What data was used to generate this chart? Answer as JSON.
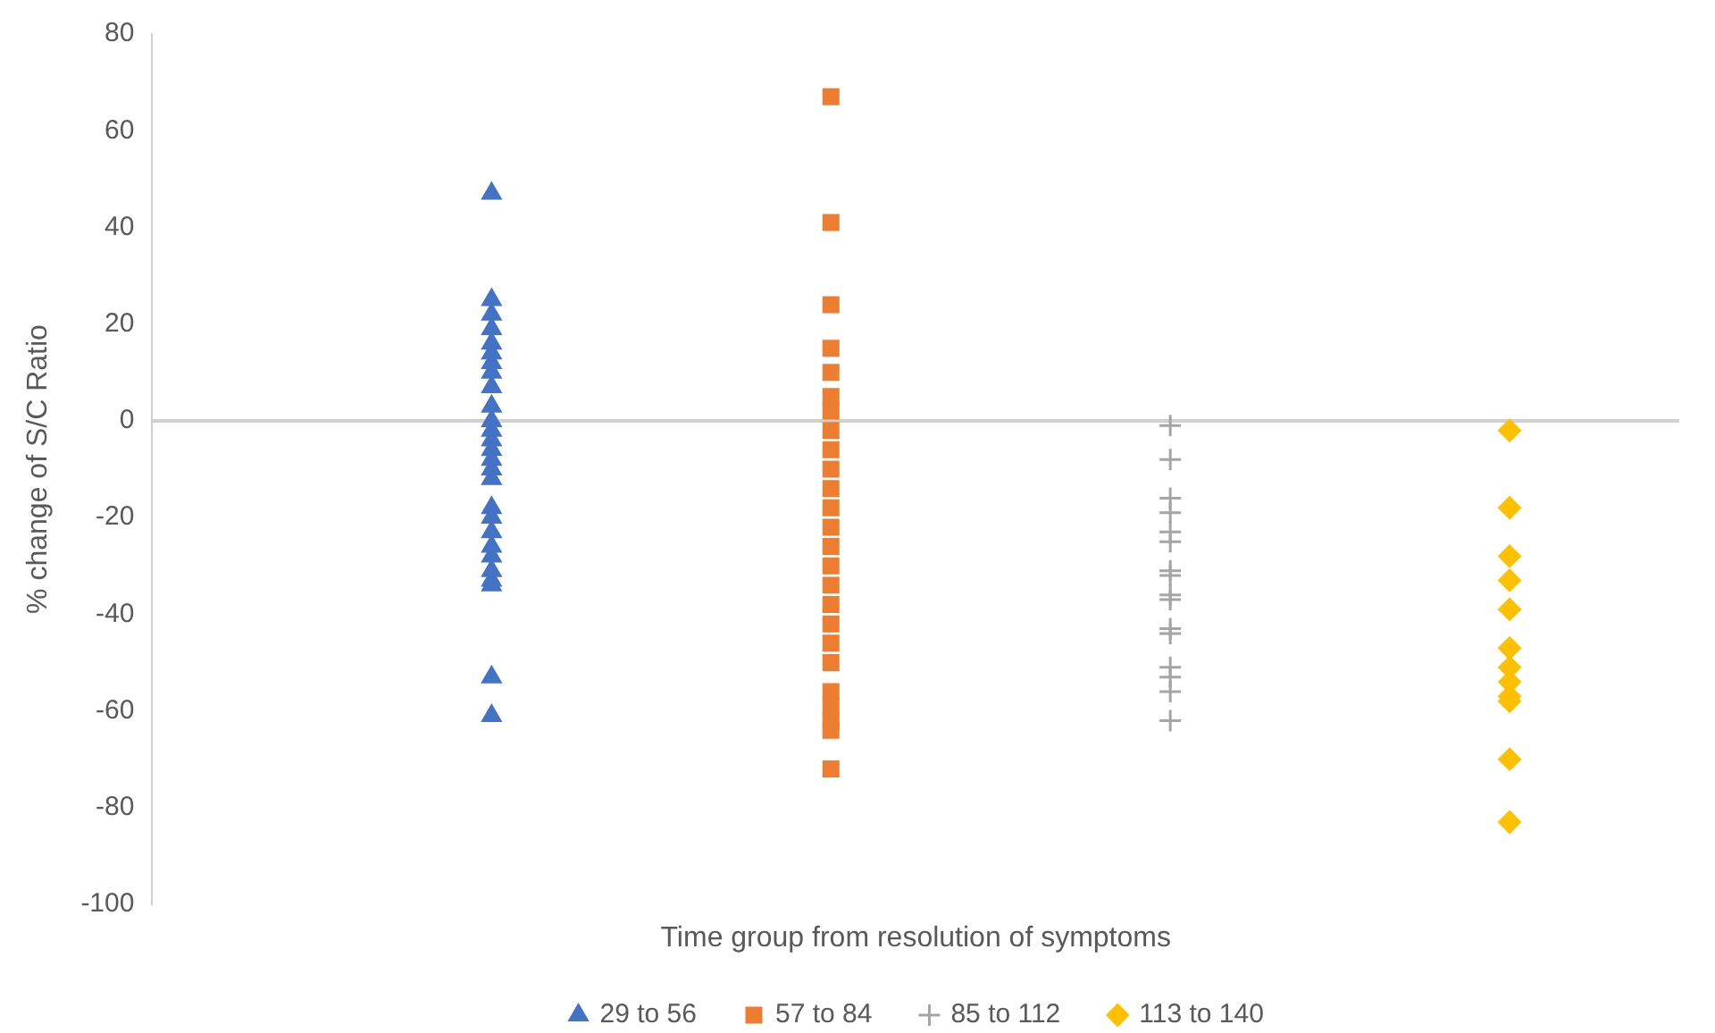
{
  "chart_data": {
    "type": "scatter",
    "xlabel": "Time group from resolution of symptoms",
    "ylabel": "% change of S/C Ratio",
    "categories": [
      null,
      null,
      null,
      null
    ],
    "ylim": [
      -100,
      80
    ],
    "yticks": [
      -100,
      -80,
      -60,
      -40,
      -20,
      0,
      20,
      40,
      60,
      80
    ],
    "tick_labels": "y",
    "grid": false,
    "ref_lines": [
      {
        "axis": "y",
        "value": 0,
        "color": "#d0d0d0"
      }
    ],
    "legend": "bottom",
    "series": [
      {
        "name": "29 to 56",
        "color": "#4472c4",
        "marker": "triangle",
        "values": [
          47,
          null,
          null,
          null
        ]
      },
      {
        "color": "#4472c4",
        "marker": "triangle",
        "values": [
          25,
          null,
          null,
          null
        ]
      },
      {
        "color": "#4472c4",
        "marker": "triangle",
        "values": [
          22,
          null,
          null,
          null
        ]
      },
      {
        "color": "#4472c4",
        "marker": "triangle",
        "values": [
          19,
          null,
          null,
          null
        ]
      },
      {
        "color": "#4472c4",
        "marker": "triangle",
        "values": [
          16,
          null,
          null,
          null
        ]
      },
      {
        "color": "#4472c4",
        "marker": "triangle",
        "values": [
          14,
          null,
          null,
          null
        ]
      },
      {
        "color": "#4472c4",
        "marker": "triangle",
        "values": [
          12,
          null,
          null,
          null
        ]
      },
      {
        "color": "#4472c4",
        "marker": "triangle",
        "values": [
          10,
          null,
          null,
          null
        ]
      },
      {
        "color": "#4472c4",
        "marker": "triangle",
        "values": [
          7,
          null,
          null,
          null
        ]
      },
      {
        "color": "#4472c4",
        "marker": "triangle",
        "values": [
          3,
          null,
          null,
          null
        ]
      },
      {
        "color": "#4472c4",
        "marker": "triangle",
        "values": [
          0,
          null,
          null,
          null
        ]
      },
      {
        "color": "#4472c4",
        "marker": "triangle",
        "values": [
          -2,
          null,
          null,
          null
        ]
      },
      {
        "color": "#4472c4",
        "marker": "triangle",
        "values": [
          -4,
          null,
          null,
          null
        ]
      },
      {
        "color": "#4472c4",
        "marker": "triangle",
        "values": [
          -6,
          null,
          null,
          null
        ]
      },
      {
        "color": "#4472c4",
        "marker": "triangle",
        "values": [
          -8,
          null,
          null,
          null
        ]
      },
      {
        "color": "#4472c4",
        "marker": "triangle",
        "values": [
          -10,
          null,
          null,
          null
        ]
      },
      {
        "color": "#4472c4",
        "marker": "triangle",
        "values": [
          -12,
          null,
          null,
          null
        ]
      },
      {
        "color": "#4472c4",
        "marker": "triangle",
        "values": [
          -18,
          null,
          null,
          null
        ]
      },
      {
        "color": "#4472c4",
        "marker": "triangle",
        "values": [
          -20,
          null,
          null,
          null
        ]
      },
      {
        "color": "#4472c4",
        "marker": "triangle",
        "values": [
          -23,
          null,
          null,
          null
        ]
      },
      {
        "color": "#4472c4",
        "marker": "triangle",
        "values": [
          -26,
          null,
          null,
          null
        ]
      },
      {
        "color": "#4472c4",
        "marker": "triangle",
        "values": [
          -28,
          null,
          null,
          null
        ]
      },
      {
        "color": "#4472c4",
        "marker": "triangle",
        "values": [
          -31,
          null,
          null,
          null
        ]
      },
      {
        "color": "#4472c4",
        "marker": "triangle",
        "values": [
          -33,
          null,
          null,
          null
        ]
      },
      {
        "color": "#4472c4",
        "marker": "triangle",
        "values": [
          -34,
          null,
          null,
          null
        ]
      },
      {
        "color": "#4472c4",
        "marker": "triangle",
        "values": [
          -53,
          null,
          null,
          null
        ]
      },
      {
        "color": "#4472c4",
        "marker": "triangle",
        "values": [
          -61,
          null,
          null,
          null
        ]
      },
      {
        "name": "57 to 84",
        "color": "#ed7d31",
        "marker": "square",
        "values": [
          null,
          67,
          null,
          null
        ]
      },
      {
        "color": "#ed7d31",
        "marker": "square",
        "values": [
          null,
          41,
          null,
          null
        ]
      },
      {
        "color": "#ed7d31",
        "marker": "square",
        "values": [
          null,
          24,
          null,
          null
        ]
      },
      {
        "color": "#ed7d31",
        "marker": "square",
        "values": [
          null,
          15,
          null,
          null
        ]
      },
      {
        "color": "#ed7d31",
        "marker": "square",
        "values": [
          null,
          10,
          null,
          null
        ]
      },
      {
        "color": "#ed7d31",
        "marker": "square",
        "values": [
          null,
          5,
          null,
          null
        ]
      },
      {
        "color": "#ed7d31",
        "marker": "square",
        "values": [
          null,
          2,
          null,
          null
        ]
      },
      {
        "color": "#ed7d31",
        "marker": "square",
        "values": [
          null,
          -2,
          null,
          null
        ]
      },
      {
        "color": "#ed7d31",
        "marker": "square",
        "values": [
          null,
          -6,
          null,
          null
        ]
      },
      {
        "color": "#ed7d31",
        "marker": "square",
        "values": [
          null,
          -10,
          null,
          null
        ]
      },
      {
        "color": "#ed7d31",
        "marker": "square",
        "values": [
          null,
          -14,
          null,
          null
        ]
      },
      {
        "color": "#ed7d31",
        "marker": "square",
        "values": [
          null,
          -18,
          null,
          null
        ]
      },
      {
        "color": "#ed7d31",
        "marker": "square",
        "values": [
          null,
          -22,
          null,
          null
        ]
      },
      {
        "color": "#ed7d31",
        "marker": "square",
        "values": [
          null,
          -26,
          null,
          null
        ]
      },
      {
        "color": "#ed7d31",
        "marker": "square",
        "values": [
          null,
          -30,
          null,
          null
        ]
      },
      {
        "color": "#ed7d31",
        "marker": "square",
        "values": [
          null,
          -34,
          null,
          null
        ]
      },
      {
        "color": "#ed7d31",
        "marker": "square",
        "values": [
          null,
          -38,
          null,
          null
        ]
      },
      {
        "color": "#ed7d31",
        "marker": "square",
        "values": [
          null,
          -42,
          null,
          null
        ]
      },
      {
        "color": "#ed7d31",
        "marker": "square",
        "values": [
          null,
          -46,
          null,
          null
        ]
      },
      {
        "color": "#ed7d31",
        "marker": "square",
        "values": [
          null,
          -50,
          null,
          null
        ]
      },
      {
        "color": "#ed7d31",
        "marker": "square",
        "values": [
          null,
          -56,
          null,
          null
        ]
      },
      {
        "color": "#ed7d31",
        "marker": "square",
        "values": [
          null,
          -59,
          null,
          null
        ]
      },
      {
        "color": "#ed7d31",
        "marker": "square",
        "values": [
          null,
          -62,
          null,
          null
        ]
      },
      {
        "color": "#ed7d31",
        "marker": "square",
        "values": [
          null,
          -64,
          null,
          null
        ]
      },
      {
        "color": "#ed7d31",
        "marker": "square",
        "values": [
          null,
          -72,
          null,
          null
        ]
      },
      {
        "name": "85 to 112",
        "color": "#a5a5a5",
        "marker": "cross",
        "values": [
          null,
          null,
          -1,
          null
        ]
      },
      {
        "color": "#a5a5a5",
        "marker": "cross",
        "values": [
          null,
          null,
          -8,
          null
        ]
      },
      {
        "color": "#a5a5a5",
        "marker": "cross",
        "values": [
          null,
          null,
          -16,
          null
        ]
      },
      {
        "color": "#a5a5a5",
        "marker": "cross",
        "values": [
          null,
          null,
          -19,
          null
        ]
      },
      {
        "color": "#a5a5a5",
        "marker": "cross",
        "values": [
          null,
          null,
          -23,
          null
        ]
      },
      {
        "color": "#a5a5a5",
        "marker": "cross",
        "values": [
          null,
          null,
          -25,
          null
        ]
      },
      {
        "color": "#a5a5a5",
        "marker": "cross",
        "values": [
          null,
          null,
          -31,
          null
        ]
      },
      {
        "color": "#a5a5a5",
        "marker": "cross",
        "values": [
          null,
          null,
          -32,
          null
        ]
      },
      {
        "color": "#a5a5a5",
        "marker": "cross",
        "values": [
          null,
          null,
          -36,
          null
        ]
      },
      {
        "color": "#a5a5a5",
        "marker": "cross",
        "values": [
          null,
          null,
          -37,
          null
        ]
      },
      {
        "color": "#a5a5a5",
        "marker": "cross",
        "values": [
          null,
          null,
          -43,
          null
        ]
      },
      {
        "color": "#a5a5a5",
        "marker": "cross",
        "values": [
          null,
          null,
          -44,
          null
        ]
      },
      {
        "color": "#a5a5a5",
        "marker": "cross",
        "values": [
          null,
          null,
          -51,
          null
        ]
      },
      {
        "color": "#a5a5a5",
        "marker": "cross",
        "values": [
          null,
          null,
          -53,
          null
        ]
      },
      {
        "color": "#a5a5a5",
        "marker": "cross",
        "values": [
          null,
          null,
          -56,
          null
        ]
      },
      {
        "color": "#a5a5a5",
        "marker": "cross",
        "values": [
          null,
          null,
          -62,
          null
        ]
      },
      {
        "name": "113 to 140",
        "color": "#ffc000",
        "marker": "diamond",
        "values": [
          null,
          null,
          null,
          -2
        ]
      },
      {
        "color": "#ffc000",
        "marker": "diamond",
        "values": [
          null,
          null,
          null,
          -18
        ]
      },
      {
        "color": "#ffc000",
        "marker": "diamond",
        "values": [
          null,
          null,
          null,
          -28
        ]
      },
      {
        "color": "#ffc000",
        "marker": "diamond",
        "values": [
          null,
          null,
          null,
          -33
        ]
      },
      {
        "color": "#ffc000",
        "marker": "diamond",
        "values": [
          null,
          null,
          null,
          -39
        ]
      },
      {
        "color": "#ffc000",
        "marker": "diamond",
        "values": [
          null,
          null,
          null,
          -47
        ]
      },
      {
        "color": "#ffc000",
        "marker": "diamond",
        "values": [
          null,
          null,
          null,
          -51
        ]
      },
      {
        "color": "#ffc000",
        "marker": "diamond",
        "values": [
          null,
          null,
          null,
          -54
        ]
      },
      {
        "color": "#ffc000",
        "marker": "diamond",
        "values": [
          null,
          null,
          null,
          -57
        ]
      },
      {
        "color": "#ffc000",
        "marker": "diamond",
        "values": [
          null,
          null,
          null,
          -58
        ]
      },
      {
        "color": "#ffc000",
        "marker": "diamond",
        "values": [
          null,
          null,
          null,
          -70
        ]
      },
      {
        "color": "#ffc000",
        "marker": "diamond",
        "values": [
          null,
          null,
          null,
          -83
        ]
      }
    ]
  }
}
